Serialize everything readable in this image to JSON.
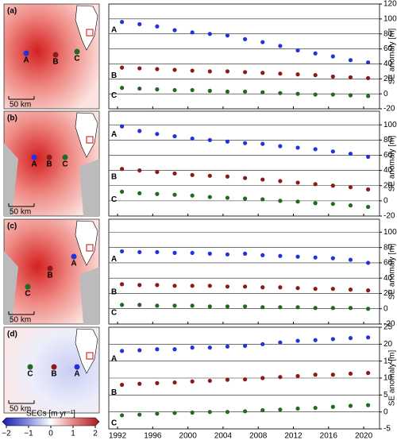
{
  "chart_data": [
    {
      "type": "scatter",
      "panel": "(a)",
      "ylabel": "SE anomaly [m]",
      "grid": true,
      "show_xtick_labels": false,
      "map": {
        "labels": [
          "A",
          "B",
          "C"
        ],
        "scale": "50 km",
        "tone": "red"
      },
      "x": [
        1992.5,
        1994.5,
        1996.5,
        1998.5,
        2000.5,
        2002.5,
        2004.5,
        2006.5,
        2008.5,
        2010.5,
        2012.5,
        2014.5,
        2016.5,
        2018.5,
        2020.5
      ],
      "xlim": [
        1991,
        2021.8
      ],
      "xticks": [
        1992,
        1996,
        2000,
        2004,
        2008,
        2012,
        2016,
        2020
      ],
      "ylim": [
        -20,
        120
      ],
      "yticks": [
        -20,
        0,
        20,
        40,
        60,
        80,
        100,
        120
      ],
      "series": [
        {
          "name": "A",
          "color": "#2233dd",
          "values": [
            96,
            93,
            90,
            85,
            82,
            80,
            78,
            73,
            69,
            64,
            58,
            54,
            50,
            45,
            42
          ]
        },
        {
          "name": "B",
          "color": "#8b1a1a",
          "values": [
            35,
            34,
            33,
            32,
            31,
            30,
            30,
            29,
            28,
            27,
            26,
            25,
            23,
            22,
            21
          ]
        },
        {
          "name": "C",
          "color": "#1f6b1f",
          "values": [
            8,
            7,
            6,
            5,
            5,
            4,
            3,
            3,
            2,
            1,
            0,
            -1,
            -1,
            -2,
            -3
          ]
        }
      ]
    },
    {
      "type": "scatter",
      "panel": "(b)",
      "ylabel": "SE anomaly [m]",
      "grid": true,
      "show_xtick_labels": false,
      "map": {
        "labels": [
          "A",
          "B",
          "C"
        ],
        "scale": "50 km",
        "tone": "red"
      },
      "x": [
        1992.5,
        1994.5,
        1996.5,
        1998.5,
        2000.5,
        2002.5,
        2004.5,
        2006.5,
        2008.5,
        2010.5,
        2012.5,
        2014.5,
        2016.5,
        2018.5,
        2020.5
      ],
      "xlim": [
        1991,
        2021.8
      ],
      "xticks": [
        1992,
        1996,
        2000,
        2004,
        2008,
        2012,
        2016,
        2020
      ],
      "ylim": [
        -20,
        118
      ],
      "yticks": [
        -20,
        0,
        20,
        40,
        60,
        80,
        100
      ],
      "series": [
        {
          "name": "A",
          "color": "#2233dd",
          "values": [
            98,
            92,
            88,
            85,
            82,
            80,
            78,
            76,
            75,
            72,
            70,
            68,
            65,
            62,
            58
          ]
        },
        {
          "name": "B",
          "color": "#8b1a1a",
          "values": [
            42,
            40,
            38,
            36,
            34,
            33,
            32,
            30,
            28,
            26,
            24,
            22,
            20,
            18,
            15
          ]
        },
        {
          "name": "C",
          "color": "#1f6b1f",
          "values": [
            12,
            10,
            9,
            8,
            7,
            5,
            4,
            3,
            2,
            0,
            -1,
            -3,
            -4,
            -6,
            -8
          ]
        }
      ]
    },
    {
      "type": "scatter",
      "panel": "(c)",
      "ylabel": "SE anomaly [m]",
      "grid": true,
      "show_xtick_labels": false,
      "map": {
        "labels": [
          "A",
          "B",
          "C"
        ],
        "scale": "50 km",
        "tone": "red"
      },
      "x": [
        1992.5,
        1994.5,
        1996.5,
        1998.5,
        2000.5,
        2002.5,
        2004.5,
        2006.5,
        2008.5,
        2010.5,
        2012.5,
        2014.5,
        2016.5,
        2018.5,
        2020.5
      ],
      "xlim": [
        1991,
        2021.8
      ],
      "xticks": [
        1992,
        1996,
        2000,
        2004,
        2008,
        2012,
        2016,
        2020
      ],
      "ylim": [
        -20,
        117
      ],
      "yticks": [
        -20,
        0,
        20,
        40,
        60,
        80,
        100
      ],
      "series": [
        {
          "name": "A",
          "color": "#2233dd",
          "values": [
            75,
            74,
            74,
            73,
            73,
            72,
            71,
            72,
            70,
            69,
            68,
            67,
            66,
            64,
            60
          ]
        },
        {
          "name": "B",
          "color": "#8b1a1a",
          "values": [
            32,
            31,
            31,
            30,
            30,
            30,
            29,
            29,
            28,
            28,
            27,
            26,
            26,
            25,
            24
          ]
        },
        {
          "name": "C",
          "color": "#1f6b1f",
          "values": [
            5,
            5,
            4,
            4,
            4,
            3,
            3,
            3,
            2,
            2,
            2,
            1,
            1,
            1,
            0
          ]
        }
      ]
    },
    {
      "type": "scatter",
      "panel": "(d)",
      "ylabel": "SE anomaly [m]",
      "grid": true,
      "show_xtick_labels": true,
      "map": {
        "labels": [
          "A",
          "B",
          "C"
        ],
        "scale": "50 km",
        "tone": "blue"
      },
      "x": [
        1992.5,
        1994.5,
        1996.5,
        1998.5,
        2000.5,
        2002.5,
        2004.5,
        2006.5,
        2008.5,
        2010.5,
        2012.5,
        2014.5,
        2016.5,
        2018.5,
        2020.5
      ],
      "xlim": [
        1991,
        2021.8
      ],
      "xticks": [
        1992,
        1996,
        2000,
        2004,
        2008,
        2012,
        2016,
        2020
      ],
      "ylim": [
        -5,
        25
      ],
      "yticks": [
        -5,
        0,
        5,
        10,
        15,
        20,
        25
      ],
      "series": [
        {
          "name": "A",
          "color": "#2233dd",
          "values": [
            18,
            18.2,
            18.5,
            18.5,
            19,
            19,
            19.3,
            19.5,
            20,
            20.5,
            21,
            21.2,
            21.5,
            21.8,
            22
          ]
        },
        {
          "name": "B",
          "color": "#8b1a1a",
          "values": [
            8,
            8.3,
            8.5,
            8.7,
            9,
            9.2,
            9.5,
            9.6,
            10,
            10.3,
            10.6,
            11,
            11,
            11.3,
            11.5
          ]
        },
        {
          "name": "C",
          "color": "#1f6b1f",
          "values": [
            -1,
            -0.8,
            -0.5,
            -0.3,
            -0.2,
            0,
            0,
            0.2,
            0.5,
            0.7,
            1,
            1.2,
            1.5,
            1.8,
            2
          ]
        }
      ]
    }
  ],
  "colorbar": {
    "label": "SECs [m yr⁻¹]",
    "ticks": [
      {
        "value": -2,
        "label": "−2"
      },
      {
        "value": -1,
        "label": "−1"
      },
      0,
      1,
      2
    ],
    "lim": [
      -2,
      2
    ]
  }
}
